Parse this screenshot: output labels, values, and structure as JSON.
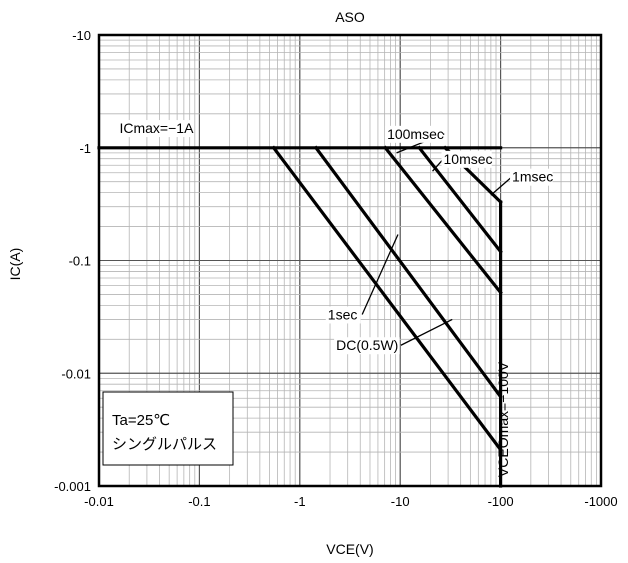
{
  "chart_data": {
    "type": "line",
    "title": "ASO",
    "xlabel": "VCE(V)",
    "ylabel": "IC(A)",
    "x_scale": "log",
    "y_scale": "log",
    "xlim": [
      -0.01,
      -1000
    ],
    "ylim": [
      -0.001,
      -10
    ],
    "grid": true,
    "x_ticks": [
      "-0.01",
      "-0.1",
      "-1",
      "-10",
      "-100",
      "-1000"
    ],
    "y_ticks": [
      "-10",
      "-1",
      "-0.1",
      "-0.01",
      "-0.001"
    ],
    "series": [
      {
        "name": "ICmax=-1A",
        "points": [
          [
            -0.01,
            -1
          ],
          [
            -100,
            -1
          ]
        ]
      },
      {
        "name": "VCEOmax=-100V",
        "points": [
          [
            -100,
            -0.33
          ],
          [
            -100,
            -0.001
          ]
        ]
      },
      {
        "name": "DC(0.5W)",
        "points": [
          [
            -0.55,
            -1
          ],
          [
            -100,
            -0.0021
          ]
        ]
      },
      {
        "name": "1sec",
        "points": [
          [
            -1.45,
            -1
          ],
          [
            -100,
            -0.0062
          ]
        ]
      },
      {
        "name": "100msec",
        "points": [
          [
            -7.1,
            -1
          ],
          [
            -100,
            -0.052
          ]
        ]
      },
      {
        "name": "10msec",
        "points": [
          [
            -15.5,
            -1
          ],
          [
            -100,
            -0.12
          ]
        ]
      },
      {
        "name": "1msec",
        "points": [
          [
            -28,
            -1
          ],
          [
            -100,
            -0.33
          ]
        ]
      }
    ],
    "annotations": [
      {
        "text": "ICmax=−1A",
        "x": -0.016,
        "y": -1.35
      },
      {
        "text": "100msec",
        "x": -7.4,
        "y": -1.2,
        "target": [
          -9.2,
          -0.9
        ]
      },
      {
        "text": "10msec",
        "x": -27,
        "y": -0.72,
        "target": [
          -21,
          -0.62
        ]
      },
      {
        "text": "1msec",
        "x": -130,
        "y": -0.5,
        "target": [
          -80,
          -0.38
        ]
      },
      {
        "text": "1sec",
        "x": -1.9,
        "y": -0.03,
        "target": [
          -9.5,
          -0.17
        ]
      },
      {
        "text": "DC(0.5W)",
        "x": -2.3,
        "y": -0.016,
        "target": [
          -33,
          -0.03
        ]
      },
      {
        "text": "VCEOmax=−100V",
        "x": -130,
        "y": -0.0012
      }
    ],
    "conditions": [
      "Ta=25℃",
      "シングルパルス"
    ]
  }
}
